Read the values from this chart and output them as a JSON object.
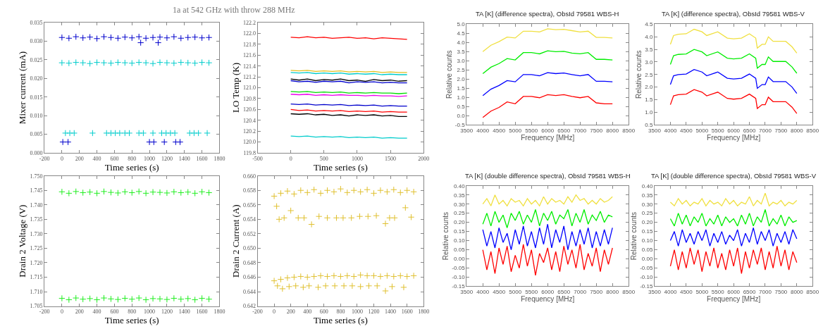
{
  "chart_data": [
    {
      "type": "scatter",
      "title": "1a at 542 GHz with throw 288 MHz",
      "xlabel": "Time series (s)",
      "ylabel": "Mixer current (mA)",
      "marker": "cross",
      "xlim": [
        -200,
        1800
      ],
      "xticks": [
        -200,
        0,
        200,
        400,
        600,
        800,
        1000,
        1200,
        1400,
        1600,
        1800
      ],
      "ylim": [
        0,
        0.035
      ],
      "yticks": [
        {
          "value": 0,
          "label": "0.000"
        },
        0.005,
        {
          "value": 0.01,
          "label": "0.010"
        },
        0.015,
        {
          "value": 0.02,
          "label": "0.020"
        },
        0.025,
        {
          "value": 0.03,
          "label": "0.030"
        },
        0.035
      ],
      "series": [
        {
          "color": "#0000cc",
          "x": [
            0,
            80,
            160,
            240,
            320,
            400,
            480,
            560,
            640,
            720,
            800,
            880,
            960,
            1040,
            1120,
            1200,
            1280,
            1360,
            1440,
            1520,
            1600,
            1680,
            900,
            1100,
            10,
            70,
            1000,
            1050,
            1170,
            1300,
            1350
          ],
          "values": [
            0.031,
            0.0308,
            0.0312,
            0.0309,
            0.0311,
            0.0307,
            0.0312,
            0.031,
            0.0308,
            0.0311,
            0.0309,
            0.0312,
            0.0308,
            0.031,
            0.0311,
            0.0309,
            0.0312,
            0.0308,
            0.031,
            0.0311,
            0.0309,
            0.031,
            0.0296,
            0.0296,
            0.0029,
            0.0029,
            0.0029,
            0.0029,
            0.0029,
            0.0029,
            0.0029
          ]
        },
        {
          "color": "#00cccc",
          "x": [
            0,
            80,
            160,
            240,
            320,
            400,
            480,
            560,
            640,
            720,
            800,
            880,
            960,
            1040,
            1120,
            1200,
            1280,
            1360,
            1440,
            1520,
            1600,
            1680,
            40,
            90,
            140,
            350,
            510,
            560,
            610,
            660,
            720,
            770,
            880,
            930,
            1040,
            1140,
            1190,
            1240,
            1290,
            1460,
            1510,
            1560,
            1660
          ],
          "values": [
            0.0242,
            0.0241,
            0.0243,
            0.0242,
            0.024,
            0.0243,
            0.0242,
            0.0241,
            0.0243,
            0.0242,
            0.0241,
            0.0243,
            0.0242,
            0.024,
            0.0243,
            0.0242,
            0.0241,
            0.0243,
            0.0242,
            0.0241,
            0.0243,
            0.0242,
            0.0053,
            0.0053,
            0.0053,
            0.0053,
            0.0053,
            0.0053,
            0.0053,
            0.0053,
            0.0053,
            0.0053,
            0.0053,
            0.0053,
            0.0053,
            0.0053,
            0.0053,
            0.0053,
            0.0053,
            0.0053,
            0.0053,
            0.0053,
            0.0053
          ]
        }
      ]
    },
    {
      "type": "line",
      "xlabel": "Time series (s)",
      "ylabel": "LO Temp (K)",
      "marker": "none",
      "xlim": [
        -500,
        2000
      ],
      "xticks": [
        -500,
        0,
        500,
        1000,
        1500,
        2000
      ],
      "ylim": [
        119.8,
        122.2
      ],
      "yticks": [
        119.8,
        {
          "value": 120.0,
          "label": "120.0"
        },
        120.2,
        120.4,
        120.6,
        120.8,
        {
          "value": 121.0,
          "label": "121.0"
        },
        121.2,
        121.4,
        121.6,
        121.8,
        {
          "value": 122.0,
          "label": "122.0"
        },
        122.2
      ],
      "x": [
        0,
        125,
        250,
        375,
        500,
        625,
        750,
        875,
        1000,
        1125,
        1250,
        1375,
        1500,
        1625,
        1750
      ],
      "series": [
        {
          "color": "#ff0000",
          "values": [
            121.93,
            121.92,
            121.94,
            121.92,
            121.93,
            121.91,
            121.92,
            121.93,
            121.91,
            121.92,
            121.9,
            121.92,
            121.91,
            121.9,
            121.89
          ]
        },
        {
          "color": "#e0c020",
          "values": [
            121.32,
            121.31,
            121.32,
            121.3,
            121.31,
            121.3,
            121.31,
            121.29,
            121.3,
            121.29,
            121.3,
            121.28,
            121.29,
            121.28,
            121.28
          ]
        },
        {
          "color": "#00cccc",
          "values": [
            121.28,
            121.27,
            121.28,
            121.26,
            121.27,
            121.26,
            121.27,
            121.25,
            121.26,
            121.25,
            121.26,
            121.24,
            121.25,
            121.24,
            121.24
          ]
        },
        {
          "color": "#000000",
          "values": [
            121.16,
            121.14,
            121.16,
            121.13,
            121.15,
            121.14,
            121.16,
            121.13,
            121.14,
            121.12,
            121.15,
            121.13,
            121.14,
            121.12,
            121.13
          ]
        },
        {
          "color": "#0000cc",
          "values": [
            121.13,
            121.11,
            121.12,
            121.1,
            121.12,
            121.11,
            121.12,
            121.09,
            121.11,
            121.1,
            121.11,
            121.09,
            121.1,
            121.09,
            121.09
          ]
        },
        {
          "color": "#00dd00",
          "values": [
            120.93,
            120.92,
            120.93,
            120.91,
            120.92,
            120.91,
            120.92,
            120.9,
            120.91,
            120.9,
            120.91,
            120.9,
            120.9,
            120.89,
            120.9
          ]
        },
        {
          "color": "#ee00ee",
          "values": [
            120.88,
            120.87,
            120.88,
            120.86,
            120.87,
            120.86,
            120.87,
            120.86,
            120.86,
            120.85,
            120.86,
            120.85,
            120.85,
            120.84,
            120.85
          ]
        },
        {
          "color": "#0000cc",
          "values": [
            120.7,
            120.69,
            120.7,
            120.68,
            120.69,
            120.68,
            120.69,
            120.67,
            120.68,
            120.67,
            120.68,
            120.66,
            120.67,
            120.66,
            120.66
          ]
        },
        {
          "color": "#ff0000",
          "values": [
            120.6,
            120.58,
            120.59,
            120.57,
            120.58,
            120.57,
            120.58,
            120.56,
            120.57,
            120.56,
            120.57,
            120.55,
            120.56,
            120.55,
            120.55
          ]
        },
        {
          "color": "#000000",
          "values": [
            120.52,
            120.51,
            120.52,
            120.5,
            120.51,
            120.49,
            120.5,
            120.48,
            120.5,
            120.49,
            120.5,
            120.48,
            120.49,
            120.47,
            120.47
          ]
        },
        {
          "color": "#00cccc",
          "values": [
            120.11,
            120.1,
            120.11,
            120.09,
            120.1,
            120.09,
            120.1,
            120.08,
            120.09,
            120.08,
            120.09,
            120.07,
            120.08,
            120.07,
            120.07
          ]
        }
      ]
    },
    {
      "type": "scatter",
      "xlabel": "Time series (s)",
      "ylabel": "Drain 2 Voltage (V)",
      "marker": "cross",
      "xlim": [
        -200,
        1800
      ],
      "xticks": [
        -200,
        0,
        200,
        400,
        600,
        800,
        1000,
        1200,
        1400,
        1600,
        1800
      ],
      "ylim": [
        1.705,
        1.75
      ],
      "yticks": [
        1.705,
        {
          "value": 1.71,
          "label": "1.710"
        },
        1.715,
        {
          "value": 1.72,
          "label": "1.720"
        },
        1.725,
        {
          "value": 1.73,
          "label": "1.730"
        },
        1.735,
        {
          "value": 1.74,
          "label": "1.740"
        },
        1.745,
        {
          "value": 1.75,
          "label": "1.750"
        }
      ],
      "x": [
        0,
        80,
        160,
        240,
        320,
        400,
        480,
        560,
        640,
        720,
        800,
        880,
        960,
        1040,
        1120,
        1200,
        1280,
        1360,
        1440,
        1520,
        1600,
        1680
      ],
      "series": [
        {
          "color": "#22ee22",
          "values": [
            1.7445,
            1.744,
            1.7446,
            1.7442,
            1.7444,
            1.744,
            1.7446,
            1.7443,
            1.7441,
            1.7445,
            1.7442,
            1.7446,
            1.744,
            1.7444,
            1.7443,
            1.7441,
            1.7445,
            1.7442,
            1.7444,
            1.744,
            1.7445,
            1.7442
          ]
        },
        {
          "color": "#22ee22",
          "values": [
            1.7077,
            1.7072,
            1.7078,
            1.7074,
            1.7076,
            1.7072,
            1.7078,
            1.7075,
            1.7073,
            1.7077,
            1.7074,
            1.7078,
            1.7072,
            1.7076,
            1.7075,
            1.7073,
            1.7077,
            1.7074,
            1.7076,
            1.7072,
            1.7077,
            1.7074
          ]
        }
      ]
    },
    {
      "type": "scatter",
      "xlabel": "Time series (s)",
      "ylabel": "Drain 2 Current (A)",
      "marker": "cross",
      "xlim": [
        -200,
        1800
      ],
      "xticks": [
        -200,
        0,
        200,
        400,
        600,
        800,
        1000,
        1200,
        1400,
        1600,
        1800
      ],
      "ylim": [
        0.642,
        0.66
      ],
      "yticks": [
        0.642,
        0.644,
        0.646,
        0.648,
        {
          "value": 0.65,
          "label": "0.650"
        },
        0.652,
        0.654,
        0.656,
        0.658,
        {
          "value": 0.66,
          "label": "0.660"
        }
      ],
      "series": [
        {
          "color": "#e0c030",
          "x": [
            0,
            80,
            160,
            240,
            320,
            400,
            480,
            560,
            640,
            720,
            800,
            880,
            960,
            1040,
            1120,
            1200,
            1280,
            1360,
            1440,
            1520,
            1600,
            1680,
            30,
            60,
            120,
            200,
            290,
            360,
            450,
            540,
            640,
            750,
            830,
            930,
            1030,
            1130,
            1230,
            1340,
            1390,
            1450,
            1580,
            1650
          ],
          "values": [
            0.6572,
            0.6576,
            0.6579,
            0.6575,
            0.658,
            0.6577,
            0.6581,
            0.6576,
            0.658,
            0.6578,
            0.6582,
            0.6577,
            0.658,
            0.6578,
            0.6581,
            0.6576,
            0.658,
            0.6578,
            0.6581,
            0.6577,
            0.658,
            0.6578,
            0.6558,
            0.654,
            0.6542,
            0.6552,
            0.6542,
            0.6542,
            0.6533,
            0.6544,
            0.6542,
            0.6542,
            0.6542,
            0.6542,
            0.6544,
            0.6544,
            0.6545,
            0.6534,
            0.6542,
            0.6542,
            0.6556,
            0.6543
          ]
        },
        {
          "color": "#e0c030",
          "x": [
            0,
            80,
            160,
            240,
            320,
            400,
            480,
            560,
            640,
            720,
            800,
            880,
            960,
            1040,
            1120,
            1200,
            1280,
            1360,
            1440,
            1520,
            1600,
            1680,
            40,
            100,
            180,
            260,
            350,
            420,
            530,
            620,
            730,
            840,
            940,
            1040,
            1140,
            1240,
            1340,
            1420,
            1560
          ],
          "values": [
            0.6455,
            0.6457,
            0.6459,
            0.646,
            0.6461,
            0.646,
            0.6461,
            0.6462,
            0.6461,
            0.6462,
            0.6461,
            0.6462,
            0.6461,
            0.6463,
            0.6462,
            0.6462,
            0.6461,
            0.6462,
            0.6461,
            0.6462,
            0.6461,
            0.6462,
            0.6448,
            0.6444,
            0.6447,
            0.6448,
            0.6446,
            0.6448,
            0.6446,
            0.6448,
            0.6448,
            0.6448,
            0.6448,
            0.6447,
            0.6448,
            0.6448,
            0.6441,
            0.6447,
            0.6446
          ]
        }
      ]
    },
    {
      "type": "line",
      "title": "TA [K] (difference spectra), ObsId 79581 WBS-H",
      "xlabel": "Frequency [MHz]",
      "ylabel": "Relative counts",
      "marker": "none",
      "xlim": [
        3500,
        8500
      ],
      "xticks": [
        3500,
        4000,
        4500,
        5000,
        5500,
        6000,
        6500,
        7000,
        7500,
        8000,
        8500
      ],
      "ylim": [
        -0.5,
        5.0
      ],
      "yticks": [
        -0.5,
        {
          "value": 0,
          "label": "0.0"
        },
        0.5,
        {
          "value": 1,
          "label": "1.0"
        },
        1.5,
        {
          "value": 2,
          "label": "2.0"
        },
        2.5,
        {
          "value": 3,
          "label": "3.0"
        },
        3.5,
        {
          "value": 4,
          "label": "4.0"
        },
        4.5,
        {
          "value": 5,
          "label": "5.0"
        }
      ],
      "x": [
        4000,
        4250,
        4500,
        4750,
        5000,
        5250,
        5500,
        5750,
        6000,
        6250,
        6500,
        6750,
        7000,
        7250,
        7500,
        7750,
        8000
      ],
      "series": [
        {
          "color": "#ff0000",
          "values": [
            -0.1,
            0.25,
            0.45,
            0.75,
            0.65,
            1.05,
            1.05,
            0.98,
            1.15,
            1.1,
            1.15,
            1.05,
            0.98,
            1.05,
            0.7,
            0.65,
            0.65
          ]
        },
        {
          "color": "#0000ff",
          "values": [
            1.1,
            1.45,
            1.65,
            1.92,
            1.85,
            2.25,
            2.25,
            2.18,
            2.35,
            2.3,
            2.33,
            2.25,
            2.18,
            2.25,
            1.88,
            1.88,
            1.85
          ]
        },
        {
          "color": "#00ee00",
          "values": [
            2.3,
            2.65,
            2.85,
            3.12,
            3.05,
            3.45,
            3.45,
            3.38,
            3.55,
            3.5,
            3.52,
            3.42,
            3.38,
            3.45,
            3.08,
            3.08,
            3.05
          ]
        },
        {
          "color": "#f0e040",
          "values": [
            3.5,
            3.85,
            4.05,
            4.3,
            4.25,
            4.62,
            4.62,
            4.58,
            4.75,
            4.7,
            4.72,
            4.65,
            4.58,
            4.62,
            4.28,
            4.28,
            4.25
          ]
        }
      ]
    },
    {
      "type": "line",
      "title": "TA [K] (difference spectra), ObsId 79581 WBS-V",
      "xlabel": "Frequency [MHz]",
      "ylabel": "Relative counts",
      "marker": "none",
      "xlim": [
        3500,
        8500
      ],
      "xticks": [
        3500,
        4000,
        4500,
        5000,
        5500,
        6000,
        6500,
        7000,
        7500,
        8000,
        8500
      ],
      "ylim": [
        0.5,
        4.5
      ],
      "yticks": [
        0.5,
        {
          "value": 1,
          "label": "1.0"
        },
        1.5,
        {
          "value": 2,
          "label": "2.0"
        },
        2.5,
        {
          "value": 3,
          "label": "3.0"
        },
        3.5,
        {
          "value": 4,
          "label": "4.0"
        },
        4.5
      ],
      "x": [
        4000,
        4100,
        4250,
        4500,
        4750,
        5000,
        5150,
        5500,
        5800,
        6000,
        6250,
        6500,
        6700,
        6750,
        6900,
        7000,
        7100,
        7250,
        7500,
        7650,
        7850,
        8000
      ],
      "series": [
        {
          "color": "#ff0000",
          "values": [
            1.3,
            1.65,
            1.7,
            1.72,
            1.9,
            1.8,
            1.65,
            1.8,
            1.55,
            1.52,
            1.55,
            1.72,
            1.55,
            1.15,
            1.3,
            1.3,
            1.6,
            1.42,
            1.42,
            1.42,
            1.2,
            0.95
          ]
        },
        {
          "color": "#0000ff",
          "values": [
            2.1,
            2.45,
            2.5,
            2.52,
            2.7,
            2.6,
            2.45,
            2.6,
            2.35,
            2.32,
            2.35,
            2.52,
            2.35,
            1.95,
            2.1,
            2.1,
            2.4,
            2.22,
            2.22,
            2.22,
            2.0,
            1.75
          ]
        },
        {
          "color": "#00ee00",
          "values": [
            2.9,
            3.25,
            3.3,
            3.32,
            3.5,
            3.4,
            3.25,
            3.4,
            3.15,
            3.12,
            3.15,
            3.32,
            3.15,
            2.75,
            2.9,
            2.9,
            3.2,
            3.02,
            3.02,
            3.02,
            2.8,
            2.55
          ]
        },
        {
          "color": "#f0e040",
          "values": [
            3.7,
            4.05,
            4.1,
            4.12,
            4.3,
            4.2,
            4.05,
            4.2,
            3.95,
            3.92,
            3.95,
            4.12,
            3.95,
            3.55,
            3.7,
            3.7,
            4.0,
            3.82,
            3.82,
            3.82,
            3.6,
            3.35
          ]
        }
      ]
    },
    {
      "type": "line",
      "title": "TA [K] (double difference spectra), ObsId 79581 WBS-H",
      "xlabel": "Frequency [MHz]",
      "ylabel": "Relative counts",
      "marker": "none",
      "xlim": [
        3500,
        8500
      ],
      "xticks": [
        3500,
        4000,
        4500,
        5000,
        5500,
        6000,
        6500,
        7000,
        7500,
        8000,
        8500
      ],
      "ylim": [
        -0.15,
        0.4
      ],
      "yticks": [
        -0.15,
        {
          "value": -0.1,
          "label": "-0.10"
        },
        -0.05,
        {
          "value": 0,
          "label": "0.00"
        },
        0.05,
        {
          "value": 0.1,
          "label": "0.10"
        },
        0.15,
        {
          "value": 0.2,
          "label": "0.20"
        },
        0.25,
        {
          "value": 0.3,
          "label": "0.30"
        },
        0.35,
        {
          "value": 0.4,
          "label": "0.40"
        }
      ],
      "x": [
        4000,
        4125,
        4250,
        4375,
        4500,
        4625,
        4750,
        4875,
        5000,
        5125,
        5250,
        5375,
        5500,
        5625,
        5750,
        5875,
        6000,
        6125,
        6250,
        6375,
        6500,
        6625,
        6750,
        6875,
        7000,
        7125,
        7250,
        7375,
        7500,
        7625,
        7750,
        7875,
        8000
      ],
      "series": [
        {
          "color": "#ff0000",
          "values": [
            0.05,
            -0.06,
            0.04,
            -0.08,
            0.06,
            -0.03,
            0.07,
            -0.07,
            0.02,
            -0.05,
            0.08,
            -0.04,
            0.05,
            -0.09,
            0.03,
            -0.02,
            0.06,
            -0.06,
            0.04,
            -0.07,
            0.07,
            -0.03,
            0.05,
            -0.05,
            0.08,
            -0.06,
            0.03,
            -0.04,
            0.06,
            -0.07,
            0.05,
            -0.03,
            0.06
          ]
        },
        {
          "color": "#0000ff",
          "values": [
            0.16,
            0.07,
            0.15,
            0.06,
            0.17,
            0.09,
            0.14,
            0.05,
            0.16,
            0.08,
            0.18,
            0.07,
            0.15,
            0.06,
            0.17,
            0.08,
            0.19,
            0.06,
            0.16,
            0.09,
            0.18,
            0.05,
            0.15,
            0.07,
            0.16,
            0.08,
            0.17,
            0.06,
            0.15,
            0.07,
            0.16,
            0.08,
            0.17
          ]
        },
        {
          "color": "#00ee00",
          "values": [
            0.19,
            0.25,
            0.18,
            0.26,
            0.2,
            0.24,
            0.17,
            0.25,
            0.21,
            0.26,
            0.19,
            0.24,
            0.2,
            0.27,
            0.18,
            0.25,
            0.21,
            0.26,
            0.19,
            0.24,
            0.22,
            0.27,
            0.18,
            0.25,
            0.2,
            0.27,
            0.19,
            0.24,
            0.21,
            0.26,
            0.2,
            0.24,
            0.23
          ]
        },
        {
          "color": "#f0e040",
          "values": [
            0.3,
            0.33,
            0.29,
            0.35,
            0.3,
            0.32,
            0.29,
            0.33,
            0.31,
            0.32,
            0.29,
            0.33,
            0.3,
            0.32,
            0.29,
            0.34,
            0.3,
            0.33,
            0.31,
            0.32,
            0.3,
            0.34,
            0.31,
            0.35,
            0.32,
            0.33,
            0.3,
            0.32,
            0.3,
            0.33,
            0.31,
            0.32,
            0.34
          ]
        }
      ]
    },
    {
      "type": "line",
      "title": "TA [K] (double difference spectra), ObsId 79581 WBS-V",
      "xlabel": "Frequency [MHz]",
      "ylabel": "Relative counts",
      "marker": "none",
      "xlim": [
        3500,
        8500
      ],
      "xticks": [
        3500,
        4000,
        4500,
        5000,
        5500,
        6000,
        6500,
        7000,
        7500,
        8000,
        8500
      ],
      "ylim": [
        -0.15,
        0.4
      ],
      "yticks": [
        -0.15,
        {
          "value": -0.1,
          "label": "-0.10"
        },
        -0.05,
        {
          "value": 0,
          "label": "0.00"
        },
        0.05,
        {
          "value": 0.1,
          "label": "0.10"
        },
        0.15,
        {
          "value": 0.2,
          "label": "0.20"
        },
        0.25,
        {
          "value": 0.3,
          "label": "0.30"
        },
        0.35,
        {
          "value": 0.4,
          "label": "0.40"
        }
      ],
      "x": [
        4000,
        4125,
        4250,
        4375,
        4500,
        4625,
        4750,
        4875,
        5000,
        5125,
        5250,
        5375,
        5500,
        5625,
        5750,
        5875,
        6000,
        6125,
        6250,
        6375,
        6500,
        6625,
        6750,
        6875,
        7000,
        7125,
        7250,
        7375,
        7500,
        7625,
        7750,
        7875,
        8000
      ],
      "series": [
        {
          "color": "#ff0000",
          "values": [
            -0.04,
            0.05,
            -0.06,
            0.04,
            -0.05,
            0.06,
            -0.03,
            0.05,
            -0.07,
            0.04,
            -0.04,
            0.06,
            -0.05,
            0.03,
            -0.06,
            0.05,
            -0.04,
            0.06,
            -0.08,
            0.04,
            -0.05,
            0.05,
            -0.03,
            0.06,
            -0.06,
            0.04,
            -0.05,
            0.07,
            -0.04,
            0.05,
            -0.06,
            0.04,
            -0.02
          ]
        },
        {
          "color": "#0000ff",
          "values": [
            0.1,
            0.15,
            0.07,
            0.16,
            0.09,
            0.14,
            0.08,
            0.15,
            0.1,
            0.16,
            0.07,
            0.14,
            0.09,
            0.15,
            0.08,
            0.13,
            0.1,
            0.16,
            0.07,
            0.14,
            0.09,
            0.17,
            0.08,
            0.15,
            0.1,
            0.16,
            0.07,
            0.14,
            0.09,
            0.15,
            0.08,
            0.16,
            0.11
          ]
        },
        {
          "color": "#00ee00",
          "values": [
            0.22,
            0.18,
            0.25,
            0.19,
            0.24,
            0.18,
            0.23,
            0.2,
            0.25,
            0.18,
            0.22,
            0.19,
            0.24,
            0.18,
            0.23,
            0.2,
            0.22,
            0.18,
            0.24,
            0.19,
            0.25,
            0.18,
            0.23,
            0.2,
            0.27,
            0.18,
            0.22,
            0.19,
            0.24,
            0.18,
            0.23,
            0.2,
            0.21
          ]
        },
        {
          "color": "#f0e040",
          "values": [
            0.31,
            0.29,
            0.33,
            0.3,
            0.32,
            0.29,
            0.31,
            0.3,
            0.33,
            0.29,
            0.32,
            0.3,
            0.31,
            0.29,
            0.33,
            0.3,
            0.32,
            0.29,
            0.31,
            0.3,
            0.34,
            0.29,
            0.32,
            0.3,
            0.36,
            0.29,
            0.31,
            0.3,
            0.32,
            0.29,
            0.31,
            0.3,
            0.32
          ]
        }
      ]
    }
  ]
}
